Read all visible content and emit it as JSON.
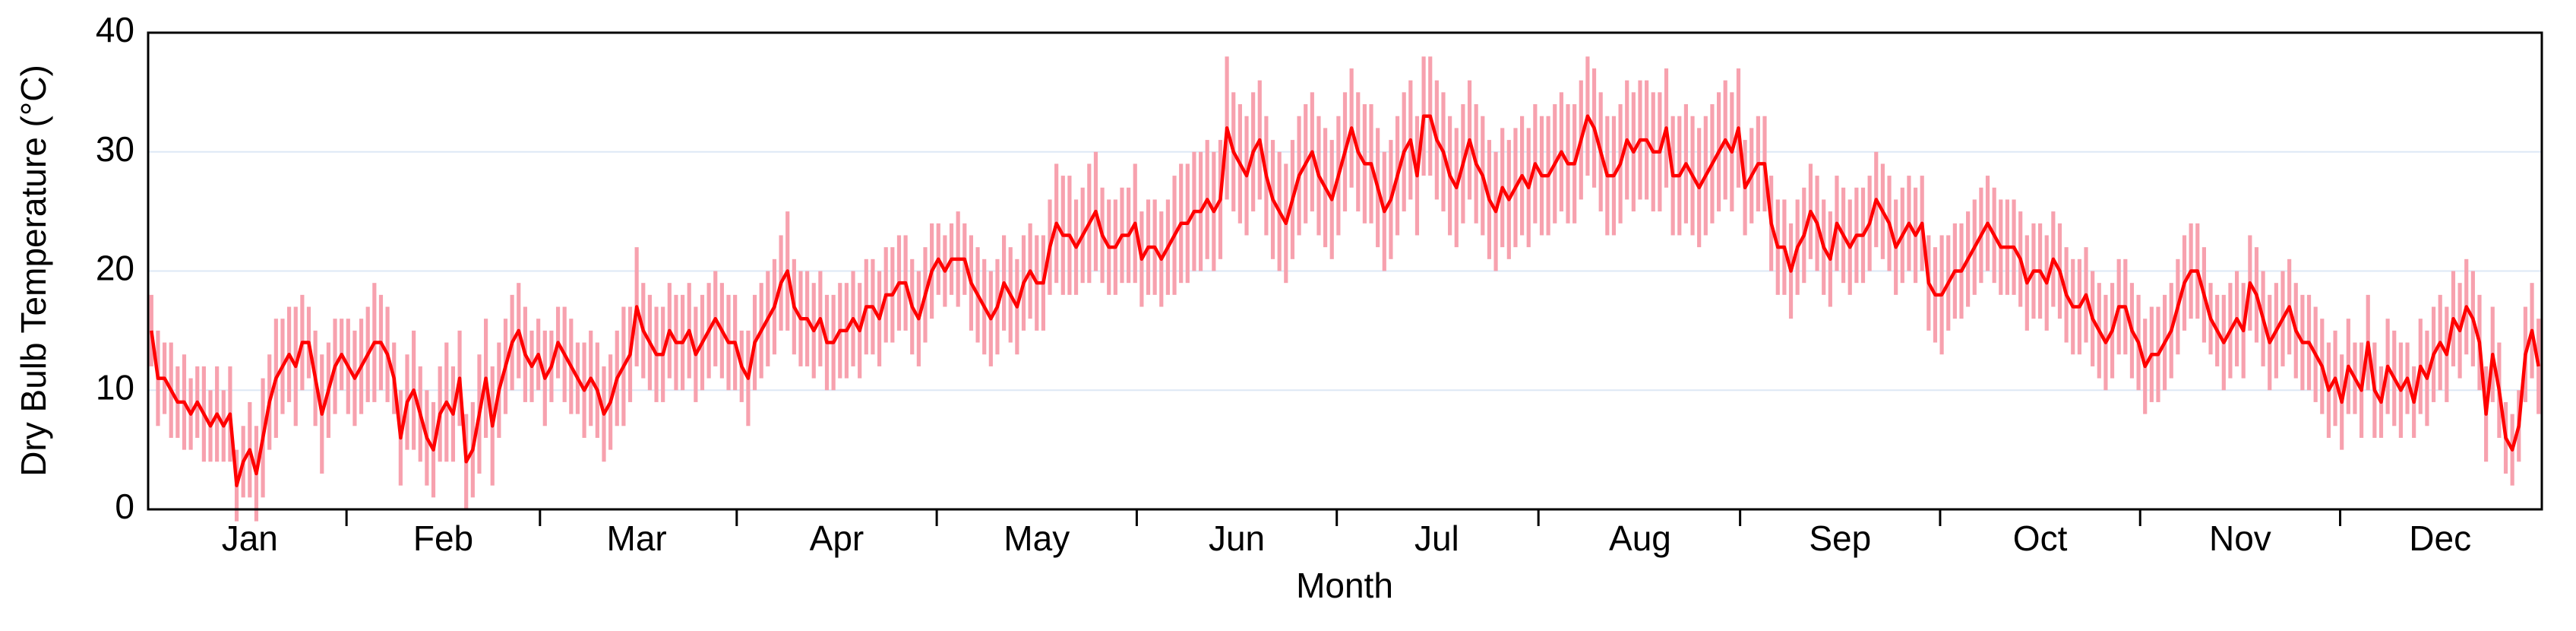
{
  "chart_data": {
    "type": "line",
    "xlabel": "Month",
    "ylabel": "Dry Bulb Temperature (°C)",
    "xlim": [
      0,
      365
    ],
    "xticks": [
      {
        "value": 15.5,
        "label": "Jan"
      },
      {
        "value": 45,
        "label": "Feb"
      },
      {
        "value": 74.5,
        "label": "Mar"
      },
      {
        "value": 105,
        "label": "Apr"
      },
      {
        "value": 135.5,
        "label": "May"
      },
      {
        "value": 166,
        "label": "Jun"
      },
      {
        "value": 196.5,
        "label": "Jul"
      },
      {
        "value": 227.5,
        "label": "Aug"
      },
      {
        "value": 258,
        "label": "Sep"
      },
      {
        "value": 288.5,
        "label": "Oct"
      },
      {
        "value": 319,
        "label": "Nov"
      },
      {
        "value": 349.5,
        "label": "Dec"
      }
    ],
    "ylim": [
      0,
      40
    ],
    "yticks": [
      0,
      10,
      20,
      30,
      40
    ],
    "grid": true,
    "series": [
      {
        "color": "#ff0000",
        "error_color": "#f7a1ae",
        "values": [
          15,
          11,
          11,
          10,
          9,
          9,
          8,
          9,
          8,
          7,
          8,
          7,
          8,
          2,
          4,
          5,
          3,
          6,
          9,
          11,
          12,
          13,
          12,
          14,
          14,
          11,
          8,
          10,
          12,
          13,
          12,
          11,
          12,
          13,
          14,
          14,
          13,
          11,
          6,
          9,
          10,
          8,
          6,
          5,
          8,
          9,
          8,
          11,
          4,
          5,
          8,
          11,
          7,
          10,
          12,
          14,
          15,
          13,
          12,
          13,
          11,
          12,
          14,
          13,
          12,
          11,
          10,
          11,
          10,
          8,
          9,
          11,
          12,
          13,
          17,
          15,
          14,
          13,
          13,
          15,
          14,
          14,
          15,
          13,
          14,
          15,
          16,
          15,
          14,
          14,
          12,
          11,
          14,
          15,
          16,
          17,
          19,
          20,
          17,
          16,
          16,
          15,
          16,
          14,
          14,
          15,
          15,
          16,
          15,
          17,
          17,
          16,
          18,
          18,
          19,
          19,
          17,
          16,
          18,
          20,
          21,
          20,
          21,
          21,
          21,
          19,
          18,
          17,
          16,
          17,
          19,
          18,
          17,
          19,
          20,
          19,
          19,
          22,
          24,
          23,
          23,
          22,
          23,
          24,
          25,
          23,
          22,
          22,
          23,
          23,
          24,
          21,
          22,
          22,
          21,
          22,
          23,
          24,
          24,
          25,
          25,
          26,
          25,
          26,
          32,
          30,
          29,
          28,
          30,
          31,
          28,
          26,
          25,
          24,
          26,
          28,
          29,
          30,
          28,
          27,
          26,
          28,
          30,
          32,
          30,
          29,
          29,
          27,
          25,
          26,
          28,
          30,
          31,
          28,
          33,
          33,
          31,
          30,
          28,
          27,
          29,
          31,
          29,
          28,
          26,
          25,
          27,
          26,
          27,
          28,
          27,
          29,
          28,
          28,
          29,
          30,
          29,
          29,
          31,
          33,
          32,
          30,
          28,
          28,
          29,
          31,
          30,
          31,
          31,
          30,
          30,
          32,
          28,
          28,
          29,
          28,
          27,
          28,
          29,
          30,
          31,
          30,
          32,
          27,
          28,
          29,
          29,
          24,
          22,
          22,
          20,
          22,
          23,
          25,
          24,
          22,
          21,
          24,
          23,
          22,
          23,
          23,
          24,
          26,
          25,
          24,
          22,
          23,
          24,
          23,
          24,
          19,
          18,
          18,
          19,
          20,
          20,
          21,
          22,
          23,
          24,
          23,
          22,
          22,
          22,
          21,
          19,
          20,
          20,
          19,
          21,
          20,
          18,
          17,
          17,
          18,
          16,
          15,
          14,
          15,
          17,
          17,
          15,
          14,
          12,
          13,
          13,
          14,
          15,
          17,
          19,
          20,
          20,
          18,
          16,
          15,
          14,
          15,
          16,
          15,
          19,
          18,
          16,
          14,
          15,
          16,
          17,
          15,
          14,
          14,
          13,
          12,
          10,
          11,
          9,
          12,
          11,
          10,
          14,
          10,
          9,
          12,
          11,
          10,
          11,
          9,
          12,
          11,
          13,
          14,
          13,
          16,
          15,
          17,
          16,
          14,
          8,
          13,
          10,
          6,
          5,
          7,
          13,
          15,
          12
        ],
        "errors": [
          3,
          4,
          3,
          4,
          3,
          4,
          3,
          3,
          4,
          3,
          4,
          3,
          4,
          3,
          3,
          4,
          4,
          5,
          4,
          5,
          4,
          4,
          5,
          4,
          3,
          4,
          5,
          4,
          4,
          3,
          4,
          4,
          4,
          4,
          5,
          4,
          4,
          3,
          4,
          4,
          5,
          4,
          4,
          4,
          4,
          5,
          4,
          4,
          4,
          4,
          5,
          5,
          5,
          4,
          4,
          4,
          4,
          4,
          3,
          3,
          4,
          3,
          3,
          4,
          4,
          3,
          4,
          4,
          4,
          4,
          4,
          4,
          5,
          4,
          5,
          4,
          4,
          4,
          4,
          4,
          4,
          4,
          4,
          4,
          4,
          4,
          4,
          4,
          4,
          4,
          3,
          4,
          4,
          4,
          4,
          4,
          4,
          5,
          4,
          4,
          4,
          4,
          4,
          4,
          4,
          4,
          4,
          4,
          4,
          4,
          4,
          4,
          4,
          4,
          4,
          4,
          4,
          4,
          4,
          4,
          3,
          3,
          3,
          4,
          3,
          4,
          4,
          4,
          4,
          4,
          4,
          4,
          4,
          4,
          4,
          4,
          4,
          4,
          5,
          5,
          5,
          4,
          4,
          5,
          5,
          4,
          4,
          4,
          4,
          4,
          5,
          4,
          4,
          4,
          4,
          4,
          5,
          5,
          5,
          5,
          5,
          5,
          5,
          5,
          6,
          5,
          5,
          5,
          5,
          5,
          5,
          5,
          5,
          5,
          5,
          5,
          5,
          5,
          5,
          5,
          5,
          5,
          5,
          5,
          5,
          5,
          5,
          5,
          5,
          5,
          5,
          5,
          5,
          5,
          5,
          5,
          5,
          5,
          5,
          5,
          5,
          5,
          5,
          5,
          5,
          5,
          5,
          5,
          5,
          5,
          5,
          5,
          5,
          5,
          5,
          5,
          5,
          5,
          5,
          5,
          5,
          5,
          5,
          5,
          5,
          5,
          5,
          5,
          5,
          5,
          5,
          5,
          5,
          5,
          5,
          5,
          5,
          5,
          5,
          5,
          5,
          5,
          5,
          4,
          4,
          4,
          4,
          4,
          4,
          4,
          4,
          4,
          4,
          4,
          4,
          4,
          4,
          4,
          4,
          4,
          4,
          4,
          4,
          4,
          4,
          4,
          4,
          4,
          4,
          4,
          4,
          4,
          4,
          5,
          4,
          4,
          4,
          4,
          4,
          4,
          4,
          4,
          4,
          4,
          4,
          4,
          4,
          4,
          4,
          4,
          4,
          4,
          4,
          4,
          4,
          4,
          4,
          4,
          4,
          4,
          4,
          4,
          4,
          4,
          4,
          4,
          4,
          4,
          4,
          4,
          4,
          4,
          4,
          4,
          3,
          3,
          4,
          4,
          4,
          4,
          4,
          4,
          4,
          4,
          4,
          4,
          4,
          4,
          4,
          4,
          4,
          4,
          4,
          4,
          4,
          4,
          3,
          4,
          4,
          4,
          3,
          4,
          4,
          4,
          3,
          3,
          4,
          4,
          4,
          4,
          4,
          4,
          4,
          4,
          4,
          4,
          4,
          4,
          4,
          3,
          3,
          3,
          4,
          4,
          4
        ]
      }
    ]
  }
}
